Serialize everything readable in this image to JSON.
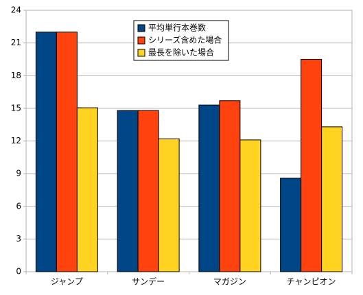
{
  "chart_data": {
    "type": "bar",
    "categories": [
      "ジャンプ",
      "サンデー",
      "マガジン",
      "チャンピオン"
    ],
    "series": [
      {
        "name": "平均単行本巻数",
        "color": "#004586",
        "values": [
          22,
          14.8,
          15.3,
          8.6
        ]
      },
      {
        "name": "シリーズ含めた場合",
        "color": "#ff420e",
        "values": [
          22,
          14.8,
          15.7,
          19.5
        ]
      },
      {
        "name": "最長を除いた場合",
        "color": "#ffd320",
        "values": [
          15.05,
          12.2,
          12.1,
          13.3
        ]
      }
    ],
    "ylim": [
      0,
      24
    ],
    "yticks": [
      0,
      3,
      6,
      9,
      12,
      15,
      18,
      21,
      24
    ],
    "grid": true,
    "legend": "top"
  }
}
